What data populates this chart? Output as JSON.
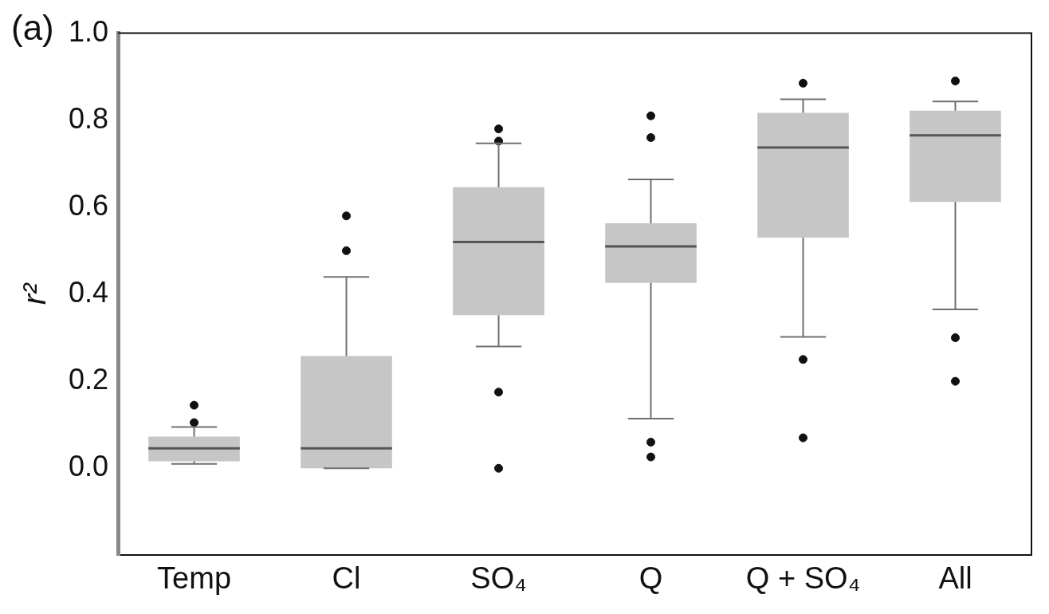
{
  "chart_data": {
    "type": "box",
    "categories": [
      "Temp",
      "Cl",
      "SO₄",
      "Q",
      "Q + SO₄",
      "All"
    ],
    "ylabel": "r²",
    "annotations": [
      "(a)"
    ],
    "ylim": [
      -0.2,
      1.0
    ],
    "yticks": [
      {
        "value": 0,
        "label": "0.0"
      },
      0.2,
      0.4,
      0.6,
      0.8,
      {
        "value": 1,
        "label": "1.0"
      }
    ],
    "grid": false,
    "marker": "circle",
    "series": [
      {
        "color": "#c6c6c6",
        "boxes": [
          {
            "low": 0.01,
            "q1": 0.016,
            "median": 0.046,
            "q3": 0.073,
            "high": 0.095,
            "outliers": [
              0.145,
              0.105
            ]
          },
          {
            "low": 0.0,
            "q1": 0.0,
            "median": 0.046,
            "q3": 0.258,
            "high": 0.44,
            "outliers": [
              0.58,
              0.5
            ]
          },
          {
            "low": 0.28,
            "q1": 0.352,
            "median": 0.52,
            "q3": 0.646,
            "high": 0.747,
            "outliers": [
              0.78,
              0.752,
              0.175,
              0.0
            ]
          },
          {
            "low": 0.114,
            "q1": 0.426,
            "median": 0.51,
            "q3": 0.563,
            "high": 0.664,
            "outliers": [
              0.81,
              0.76,
              0.06,
              0.026
            ]
          },
          {
            "low": 0.302,
            "q1": 0.53,
            "median": 0.737,
            "q3": 0.817,
            "high": 0.848,
            "outliers": [
              0.885,
              0.25,
              0.07
            ]
          },
          {
            "low": 0.365,
            "q1": 0.612,
            "median": 0.765,
            "q3": 0.822,
            "high": 0.843,
            "outliers": [
              0.89,
              0.3,
              0.2
            ]
          }
        ]
      }
    ]
  }
}
